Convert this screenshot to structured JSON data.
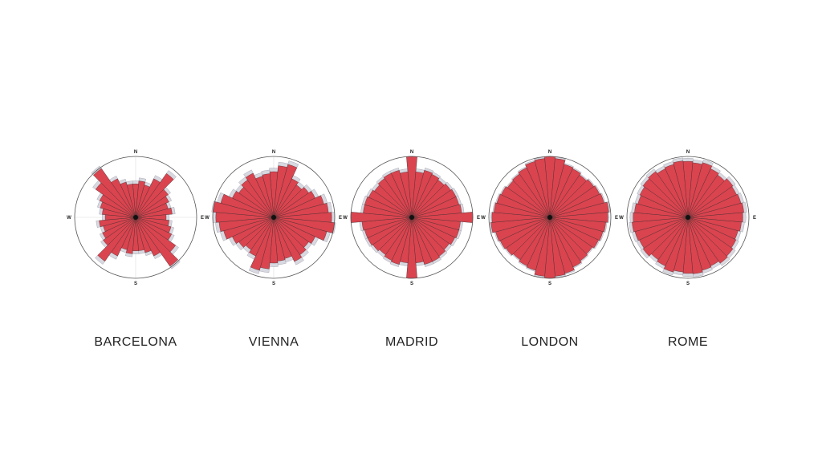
{
  "chart_data": [
    {
      "type": "polar-bar",
      "title": "BARCELONA",
      "compass_labels": [
        "N",
        "E",
        "S",
        "W"
      ],
      "rlim": [
        0,
        1
      ],
      "series": [
        {
          "color": "#d8d8e0",
          "values": [
            0.6,
            0.65,
            0.6,
            0.76,
            0.94,
            0.7,
            0.65,
            0.6,
            0.65,
            0.55,
            0.6,
            0.65,
            0.7,
            0.86,
            1.03,
            0.75,
            0.65,
            0.6,
            0.6,
            0.65,
            0.6,
            0.76,
            0.94,
            0.7,
            0.65,
            0.6,
            0.65,
            0.55,
            0.6,
            0.65,
            0.7,
            0.86,
            1.03,
            0.75,
            0.65,
            0.6
          ]
        },
        {
          "color": "#d9444f",
          "values": [
            0.55,
            0.6,
            0.55,
            0.7,
            0.88,
            0.65,
            0.6,
            0.55,
            0.6,
            0.5,
            0.55,
            0.6,
            0.65,
            0.8,
            0.98,
            0.7,
            0.6,
            0.55,
            0.55,
            0.6,
            0.55,
            0.7,
            0.88,
            0.65,
            0.6,
            0.55,
            0.6,
            0.5,
            0.55,
            0.6,
            0.65,
            0.8,
            0.98,
            0.7,
            0.6,
            0.55
          ]
        }
      ]
    },
    {
      "type": "polar-bar",
      "title": "VIENNA",
      "compass_labels": [
        "N",
        "E",
        "S",
        "W"
      ],
      "rlim": [
        0,
        1
      ],
      "series": [
        {
          "color": "#d8d8e0",
          "values": [
            0.81,
            0.91,
            0.96,
            0.76,
            0.71,
            0.76,
            0.81,
            0.91,
            0.96,
            1.0,
            1.02,
            0.96,
            0.81,
            0.76,
            0.81,
            0.86,
            0.76,
            0.78,
            0.81,
            0.91,
            0.96,
            0.76,
            0.71,
            0.76,
            0.81,
            0.91,
            0.96,
            1.0,
            1.02,
            0.96,
            0.81,
            0.76,
            0.81,
            0.86,
            0.76,
            0.78
          ]
        },
        {
          "color": "#d9444f",
          "values": [
            0.75,
            0.85,
            0.9,
            0.7,
            0.65,
            0.7,
            0.75,
            0.85,
            0.9,
            0.95,
            1.0,
            0.9,
            0.75,
            0.7,
            0.75,
            0.8,
            0.7,
            0.72,
            0.75,
            0.85,
            0.9,
            0.7,
            0.65,
            0.7,
            0.75,
            0.85,
            0.9,
            0.95,
            1.0,
            0.9,
            0.75,
            0.7,
            0.75,
            0.8,
            0.7,
            0.72
          ]
        }
      ]
    },
    {
      "type": "polar-bar",
      "title": "MADRID",
      "compass_labels": [
        "N",
        "E",
        "S",
        "W"
      ],
      "rlim": [
        0,
        1
      ],
      "series": [
        {
          "color": "#d8d8e0",
          "values": [
            1.0,
            0.8,
            0.84,
            0.82,
            0.8,
            0.82,
            0.84,
            0.84,
            0.86,
            1.0,
            0.84,
            0.84,
            0.82,
            0.8,
            0.82,
            0.84,
            0.84,
            0.8,
            1.0,
            0.8,
            0.84,
            0.82,
            0.8,
            0.82,
            0.84,
            0.84,
            0.86,
            1.0,
            0.84,
            0.84,
            0.82,
            0.8,
            0.82,
            0.84,
            0.84,
            0.8
          ]
        },
        {
          "color": "#d9444f",
          "values": [
            1.0,
            0.75,
            0.8,
            0.78,
            0.75,
            0.78,
            0.8,
            0.8,
            0.82,
            1.0,
            0.8,
            0.8,
            0.78,
            0.75,
            0.78,
            0.8,
            0.8,
            0.75,
            1.0,
            0.75,
            0.8,
            0.78,
            0.75,
            0.78,
            0.8,
            0.8,
            0.82,
            1.0,
            0.8,
            0.8,
            0.78,
            0.75,
            0.78,
            0.8,
            0.8,
            0.75
          ]
        }
      ]
    },
    {
      "type": "polar-bar",
      "title": "LONDON",
      "compass_labels": [
        "N",
        "E",
        "S",
        "W"
      ],
      "rlim": [
        0,
        1
      ],
      "series": [
        {
          "color": "#d8d8e0",
          "values": [
            1.0,
            0.99,
            0.92,
            0.9,
            0.87,
            0.9,
            0.92,
            0.94,
            0.99,
            0.97,
            0.94,
            0.92,
            0.9,
            0.87,
            0.89,
            0.92,
            0.97,
            0.99,
            1.0,
            0.99,
            0.92,
            0.9,
            0.87,
            0.9,
            0.92,
            0.94,
            0.99,
            0.97,
            0.94,
            0.92,
            0.9,
            0.87,
            0.89,
            0.92,
            0.97,
            0.99
          ]
        },
        {
          "color": "#d9444f",
          "values": [
            1.0,
            0.97,
            0.9,
            0.88,
            0.85,
            0.88,
            0.9,
            0.92,
            0.97,
            0.95,
            0.92,
            0.9,
            0.88,
            0.85,
            0.87,
            0.9,
            0.95,
            0.97,
            1.0,
            0.97,
            0.9,
            0.88,
            0.85,
            0.88,
            0.9,
            0.92,
            0.97,
            0.95,
            0.92,
            0.9,
            0.88,
            0.85,
            0.87,
            0.9,
            0.95,
            0.97
          ]
        }
      ]
    },
    {
      "type": "polar-bar",
      "title": "ROME",
      "compass_labels": [
        "N",
        "E",
        "S",
        "W"
      ],
      "rlim": [
        0,
        1
      ],
      "series": [
        {
          "color": "#d8d8e0",
          "values": [
            0.97,
            0.95,
            0.98,
            0.93,
            0.9,
            0.95,
            0.93,
            0.95,
            0.97,
            0.95,
            0.93,
            0.9,
            0.92,
            0.95,
            0.97,
            0.93,
            0.95,
            0.98,
            0.97,
            0.95,
            0.98,
            0.93,
            0.9,
            0.95,
            0.93,
            0.95,
            0.97,
            0.95,
            0.93,
            0.9,
            0.92,
            0.95,
            0.97,
            0.93,
            0.95,
            0.98
          ]
        },
        {
          "color": "#d9444f",
          "values": [
            0.92,
            0.9,
            0.93,
            0.88,
            0.85,
            0.9,
            0.88,
            0.9,
            0.92,
            0.9,
            0.88,
            0.85,
            0.87,
            0.9,
            0.92,
            0.88,
            0.9,
            0.93,
            0.92,
            0.9,
            0.93,
            0.88,
            0.85,
            0.9,
            0.88,
            0.9,
            0.92,
            0.9,
            0.88,
            0.85,
            0.87,
            0.9,
            0.92,
            0.88,
            0.9,
            0.93
          ]
        }
      ]
    }
  ]
}
